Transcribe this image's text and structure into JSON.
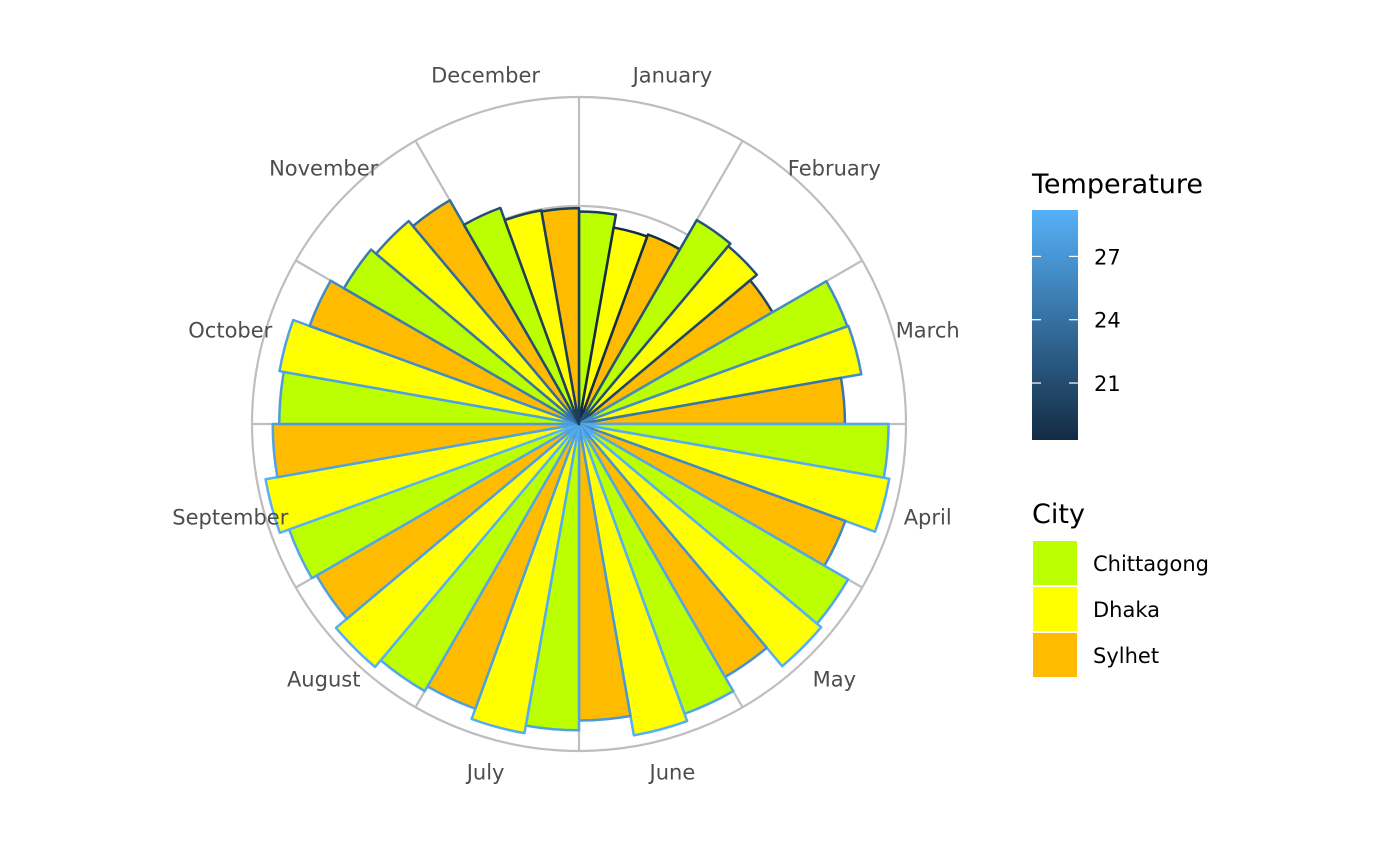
{
  "chart_data": {
    "type": "bar",
    "coord": "polar",
    "categories": [
      "January",
      "February",
      "March",
      "April",
      "May",
      "June",
      "July",
      "August",
      "September",
      "October",
      "November",
      "December"
    ],
    "series": [
      {
        "name": "Chittagong",
        "values": [
          19.5,
          21.6,
          26.2,
          28.4,
          28.5,
          28.3,
          28.1,
          28.3,
          28.3,
          27.5,
          24.9,
          21.1
        ]
      },
      {
        "name": "Dhaka",
        "values": [
          18.3,
          21.3,
          26.3,
          28.9,
          29.0,
          29.0,
          28.8,
          29.1,
          29.2,
          27.9,
          24.3,
          19.9
        ]
      },
      {
        "name": "Sylhet",
        "values": [
          18.5,
          20.5,
          24.4,
          26.0,
          26.8,
          27.2,
          27.8,
          27.8,
          28.1,
          26.3,
          23.7,
          19.8
        ]
      }
    ],
    "temperature_legend": {
      "title": "Temperature",
      "ticks": [
        27,
        24,
        21
      ],
      "range": [
        18.3,
        29.2
      ]
    },
    "city_legend": {
      "title": "City",
      "items": [
        "Chittagong",
        "Dhaka",
        "Sylhet"
      ]
    },
    "colors": {
      "Chittagong": "#BBFF00",
      "Dhaka": "#FFFF00",
      "Sylhet": "#FFBB00",
      "temp_low": "#132B43",
      "temp_high": "#56B1F7",
      "grid": "#BEBEBE"
    },
    "r_max": 30,
    "grid_breaks": [
      10,
      20,
      30
    ],
    "grid": true,
    "legend_position": "right"
  }
}
